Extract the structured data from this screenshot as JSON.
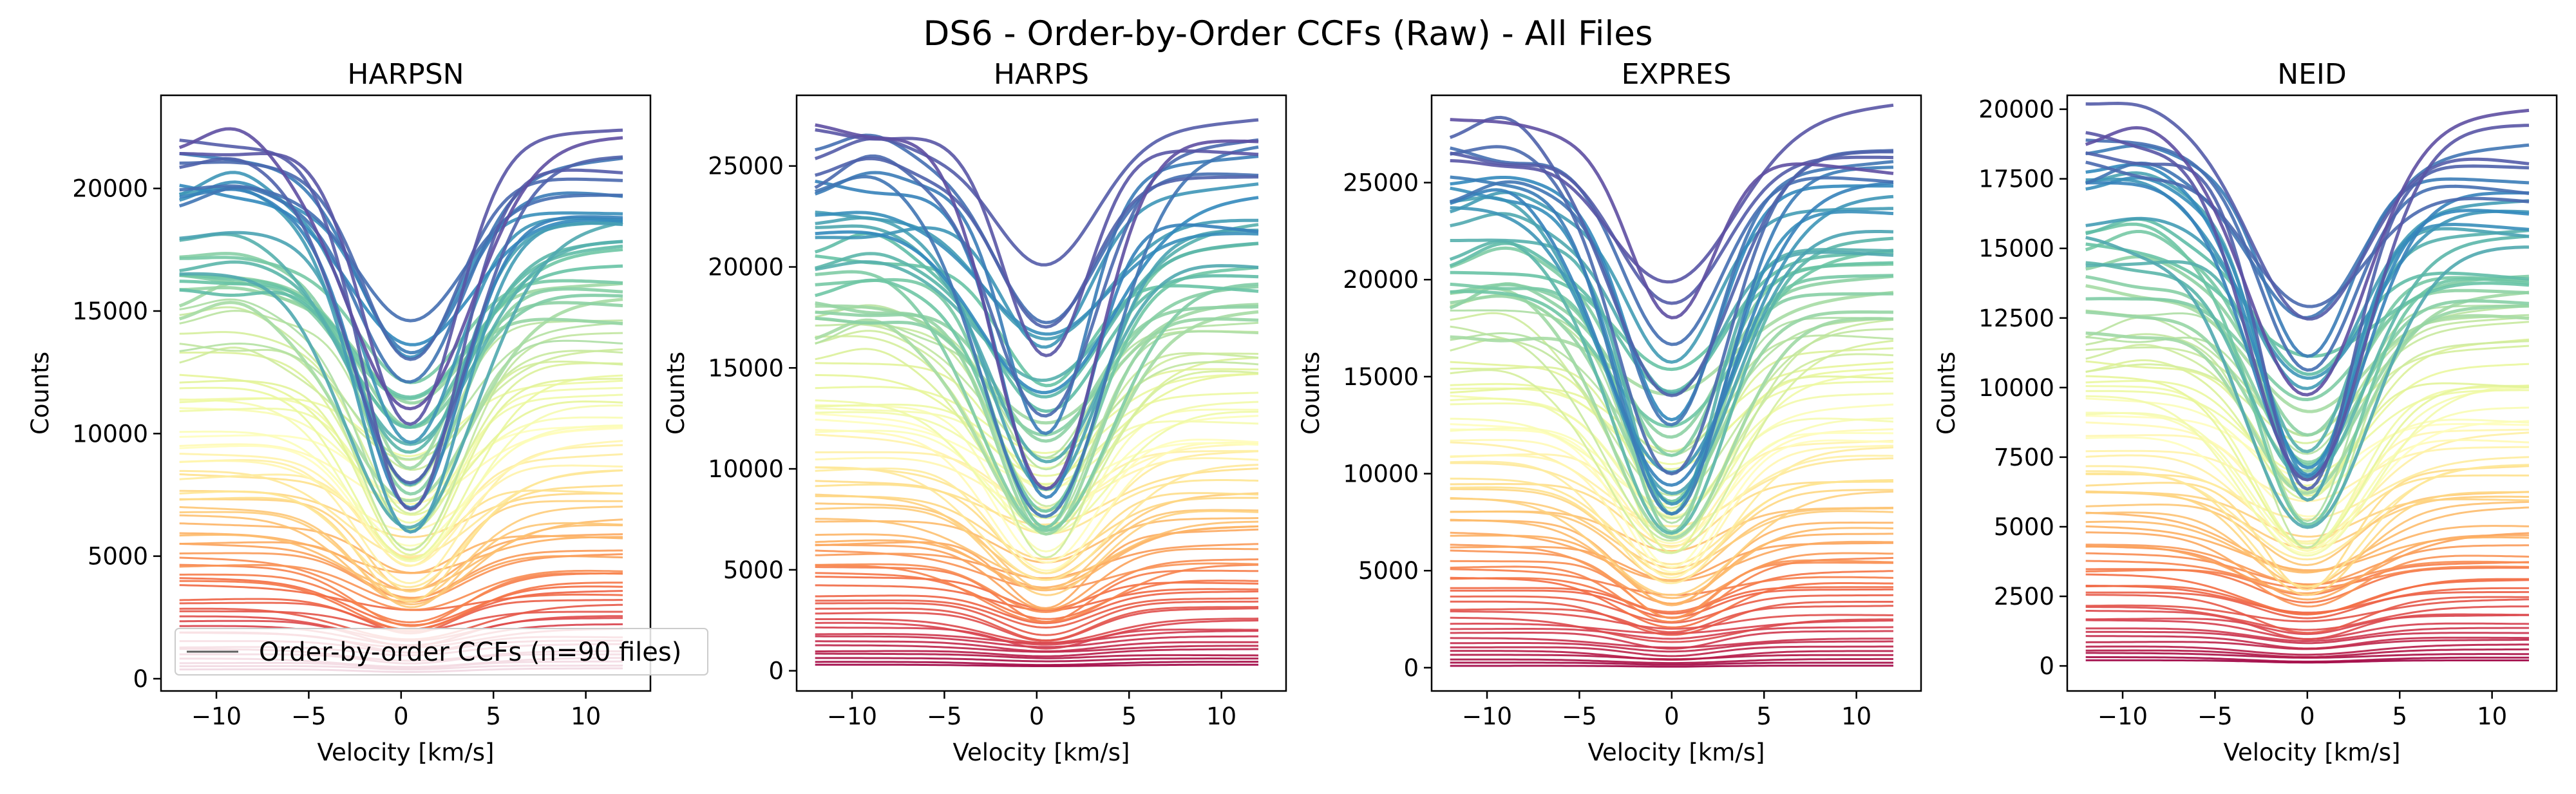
{
  "figure": {
    "suptitle": "DS6 - Order-by-Order CCFs (Raw) - All Files"
  },
  "legend": {
    "label": "Order-by-order CCFs (n=90 files)",
    "line_color": "#606060",
    "placement": "lower-left of first panel"
  },
  "chart_data": [
    {
      "type": "line",
      "title": "HARPSN",
      "xlabel": "Velocity [km/s]",
      "ylabel": "Counts",
      "xlim": [
        -13,
        13.5
      ],
      "ylim": [
        -500,
        23800
      ],
      "xticks": [
        -10,
        -5,
        0,
        5,
        10
      ],
      "yticks": [
        0,
        5000,
        10000,
        15000,
        20000
      ],
      "grid": false,
      "colormap": "Spectral",
      "n_curves": 90,
      "x_range": [
        -12,
        12
      ],
      "line_center_kms": 0.5,
      "continuum_levels_approx": [
        400,
        22700
      ],
      "lowest_core_minimum_approx": 300,
      "highest_core_minimum_approx": 17500
    },
    {
      "type": "line",
      "title": "HARPS",
      "xlabel": "Velocity [km/s]",
      "ylabel": "Counts",
      "xlim": [
        -13,
        13.5
      ],
      "ylim": [
        -1000,
        28500
      ],
      "xticks": [
        -10,
        -5,
        0,
        5,
        10
      ],
      "yticks": [
        0,
        5000,
        10000,
        15000,
        20000,
        25000
      ],
      "grid": false,
      "colormap": "Spectral",
      "n_curves": 90,
      "x_range": [
        -12,
        12
      ],
      "line_center_kms": 0.5,
      "continuum_levels_approx": [
        300,
        27000
      ],
      "lowest_core_minimum_approx": 250,
      "highest_core_minimum_approx": 19300
    },
    {
      "type": "line",
      "title": "EXPRES",
      "xlabel": "Velocity [km/s]",
      "ylabel": "Counts",
      "xlim": [
        -13,
        13.5
      ],
      "ylim": [
        -1200,
        29500
      ],
      "xticks": [
        -10,
        -5,
        0,
        5,
        10
      ],
      "yticks": [
        0,
        5000,
        10000,
        15000,
        20000,
        25000
      ],
      "grid": false,
      "colormap": "Spectral",
      "n_curves": 90,
      "x_range": [
        -12,
        12
      ],
      "line_center_kms": 0,
      "continuum_levels_approx": [
        100,
        28300
      ],
      "lowest_core_minimum_approx": 80,
      "highest_core_minimum_approx": 18400
    },
    {
      "type": "line",
      "title": "NEID",
      "xlabel": "Velocity [km/s]",
      "ylabel": "Counts",
      "xlim": [
        -13,
        13.5
      ],
      "ylim": [
        -900,
        20500
      ],
      "xticks": [
        -10,
        -5,
        0,
        5,
        10
      ],
      "yticks": [
        0,
        2500,
        5000,
        7500,
        10000,
        12500,
        15000,
        17500,
        20000
      ],
      "grid": false,
      "colormap": "Spectral",
      "n_curves": 90,
      "x_range": [
        -12,
        12
      ],
      "line_center_kms": 0,
      "continuum_levels_approx": [
        200,
        19700
      ],
      "lowest_core_minimum_approx": 150,
      "highest_core_minimum_approx": 13800
    }
  ]
}
